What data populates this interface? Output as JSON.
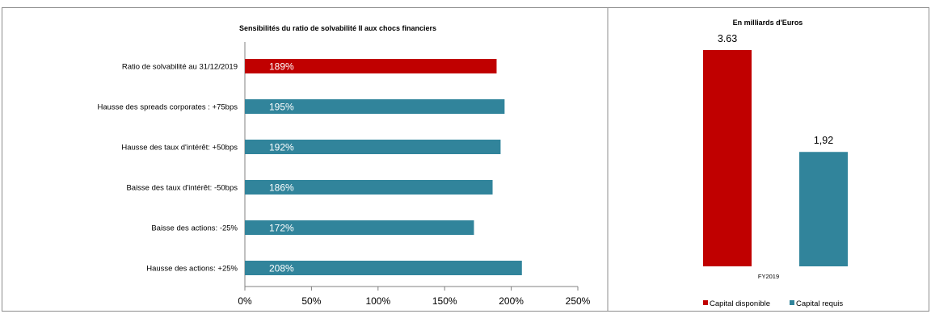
{
  "chart_data": [
    {
      "type": "bar",
      "orientation": "horizontal",
      "title": "Sensibilités du ratio de solvabilité II aux chocs financiers",
      "categories": [
        "Ratio de solvabilité au 31/12/2019",
        "Hausse des spreads corporates : +75bps",
        "Hausse des taux d'intérêt: +50bps",
        "Baisse des taux d'intérêt: -50bps",
        "Baisse des actions: -25%",
        "Hausse des actions: +25%"
      ],
      "values": [
        189,
        195,
        192,
        186,
        172,
        208
      ],
      "value_labels": [
        "189%",
        "195%",
        "192%",
        "186%",
        "172%",
        "208%"
      ],
      "bar_colors": [
        "#c00000",
        "#31849b",
        "#31849b",
        "#31849b",
        "#31849b",
        "#31849b"
      ],
      "xlim": [
        0,
        250
      ],
      "xticks": [
        0,
        50,
        100,
        150,
        200,
        250
      ],
      "xtick_labels": [
        "0%",
        "50%",
        "100%",
        "150%",
        "200%",
        "250%"
      ],
      "grid": false,
      "legend": "none"
    },
    {
      "type": "bar",
      "title": "En milliards d'Euros",
      "categories": [
        "FY2019"
      ],
      "series": [
        {
          "name": "Capital disponible",
          "values": [
            3.63
          ],
          "value_label": "3.63",
          "color": "#c00000"
        },
        {
          "name": "Capital requis",
          "values": [
            1.92
          ],
          "value_label": "1,92",
          "color": "#31849b"
        }
      ],
      "ylim": [
        0,
        4
      ],
      "grid": false,
      "legend": "bottom"
    }
  ]
}
